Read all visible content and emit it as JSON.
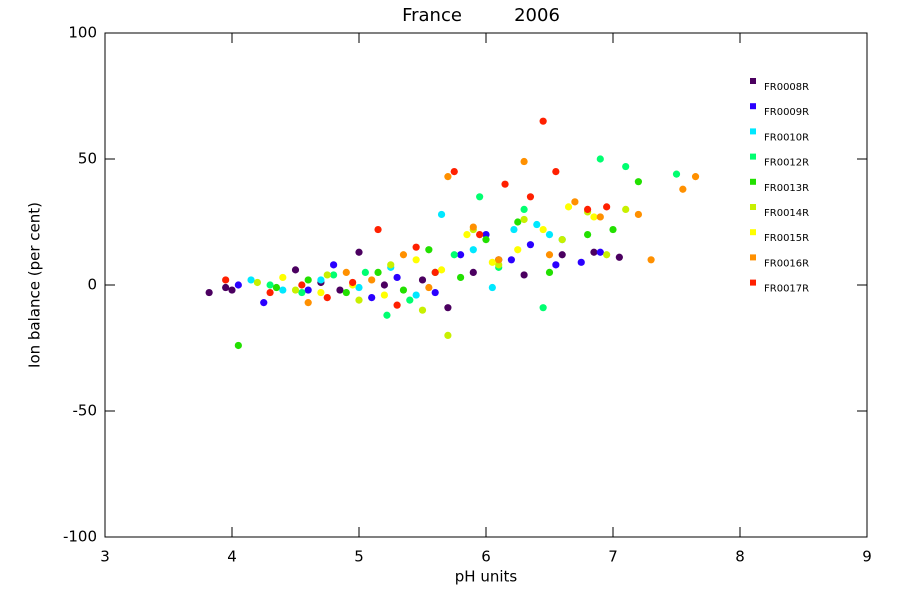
{
  "chart_data": {
    "type": "scatter",
    "title": "France",
    "year": "2006",
    "xlabel": "pH units",
    "ylabel": "Ion balance (per cent)",
    "xlim": [
      3,
      9
    ],
    "ylim": [
      -100,
      100
    ],
    "xticks": [
      3,
      4,
      5,
      6,
      7,
      8,
      9
    ],
    "yticks": [
      -100,
      -50,
      0,
      50,
      100
    ],
    "legend": "top-right",
    "series": [
      {
        "name": "FR0008R",
        "color": "#4b0060",
        "x": [
          3.82,
          3.95,
          4.0,
          4.5,
          4.7,
          4.85,
          5.0,
          5.2,
          5.5,
          5.7,
          5.9,
          6.1,
          6.3,
          6.6,
          6.85,
          7.05
        ],
        "y": [
          -3,
          -1,
          -2,
          6,
          1,
          -2,
          13,
          0,
          2,
          -9,
          5,
          10,
          4,
          12,
          13,
          11
        ]
      },
      {
        "name": "FR0009R",
        "color": "#2a00ff",
        "x": [
          4.05,
          4.25,
          4.6,
          4.8,
          5.1,
          5.3,
          5.6,
          5.8,
          6.0,
          6.2,
          6.35,
          6.55,
          6.75,
          6.9
        ],
        "y": [
          0,
          -7,
          -2,
          8,
          -5,
          3,
          -3,
          12,
          20,
          10,
          16,
          8,
          9,
          13
        ]
      },
      {
        "name": "FR0010R",
        "color": "#00e8ff",
        "x": [
          4.15,
          4.4,
          4.7,
          5.0,
          5.25,
          5.45,
          5.65,
          5.9,
          6.05,
          6.22,
          6.4,
          6.5,
          6.6
        ],
        "y": [
          2,
          -2,
          2,
          -1,
          7,
          -4,
          28,
          14,
          -1,
          22,
          24,
          20,
          18
        ]
      },
      {
        "name": "FR0012R",
        "color": "#00ff70",
        "x": [
          4.3,
          4.55,
          4.8,
          5.05,
          5.22,
          5.4,
          5.6,
          5.75,
          5.95,
          6.1,
          6.3,
          6.45,
          6.9,
          7.1,
          7.5
        ],
        "y": [
          0,
          -3,
          4,
          5,
          -12,
          -6,
          5,
          12,
          35,
          7,
          30,
          -9,
          50,
          47,
          44
        ]
      },
      {
        "name": "FR0013R",
        "color": "#22e000",
        "x": [
          4.05,
          4.35,
          4.6,
          4.9,
          5.15,
          5.35,
          5.55,
          5.8,
          6.0,
          6.25,
          6.5,
          6.8,
          7.0,
          7.2
        ],
        "y": [
          -24,
          -1,
          2,
          -3,
          5,
          -2,
          14,
          3,
          18,
          25,
          5,
          20,
          22,
          41
        ]
      },
      {
        "name": "FR0014R",
        "color": "#c8f000",
        "x": [
          4.2,
          4.5,
          4.75,
          5.0,
          5.25,
          5.5,
          5.7,
          5.9,
          6.1,
          6.3,
          6.6,
          6.8,
          6.95,
          7.1
        ],
        "y": [
          1,
          -2,
          4,
          -6,
          8,
          -10,
          -20,
          22,
          8,
          26,
          18,
          29,
          12,
          30
        ]
      },
      {
        "name": "FR0015R",
        "color": "#ffff00",
        "x": [
          4.4,
          4.7,
          4.95,
          5.2,
          5.45,
          5.65,
          5.85,
          6.05,
          6.25,
          6.45,
          6.65,
          6.85
        ],
        "y": [
          3,
          -3,
          0,
          -4,
          10,
          6,
          20,
          9,
          14,
          22,
          31,
          27
        ]
      },
      {
        "name": "FR0016R",
        "color": "#ff9000",
        "x": [
          4.6,
          4.9,
          5.1,
          5.35,
          5.55,
          5.7,
          5.9,
          6.1,
          6.3,
          6.5,
          6.7,
          6.9,
          7.2,
          7.3,
          7.55,
          7.65
        ],
        "y": [
          -7,
          5,
          2,
          12,
          -1,
          43,
          23,
          10,
          49,
          12,
          33,
          27,
          28,
          10,
          38,
          43
        ]
      },
      {
        "name": "FR0017R",
        "color": "#ff2000",
        "x": [
          3.95,
          4.3,
          4.55,
          4.75,
          4.95,
          5.15,
          5.3,
          5.45,
          5.6,
          5.75,
          5.95,
          6.15,
          6.35,
          6.45,
          6.55,
          6.8,
          6.95
        ],
        "y": [
          2,
          -3,
          0,
          -5,
          1,
          22,
          -8,
          15,
          5,
          45,
          20,
          40,
          35,
          65,
          45,
          30,
          31
        ]
      }
    ]
  }
}
